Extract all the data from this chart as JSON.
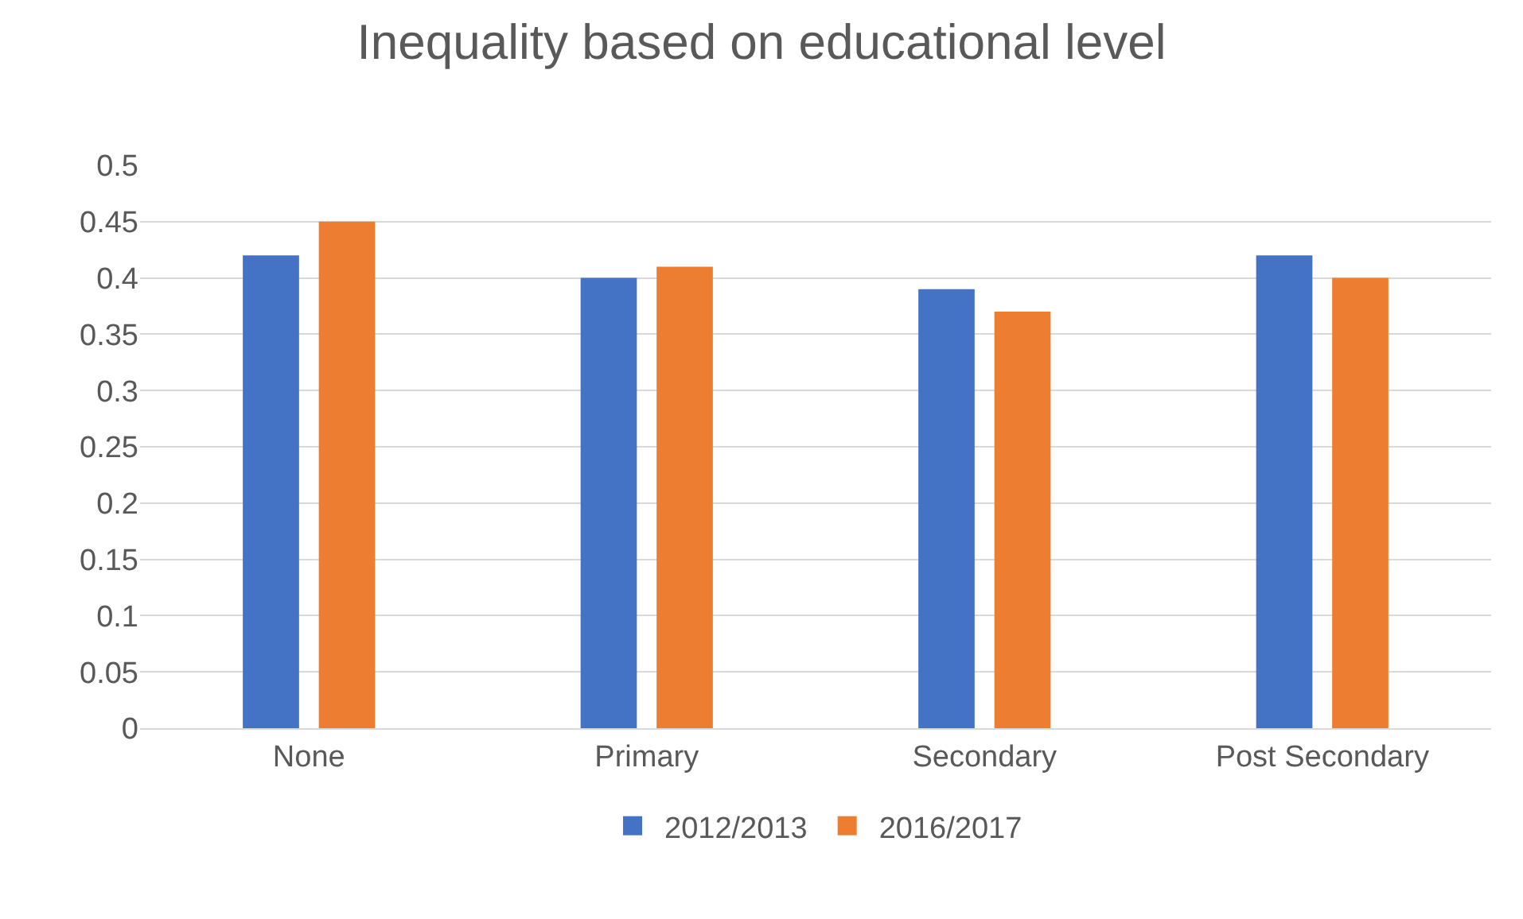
{
  "chart_data": {
    "type": "bar",
    "title": "Inequality based on educational level",
    "categories": [
      "None",
      "Primary",
      "Secondary",
      "Post Secondary"
    ],
    "series": [
      {
        "name": "2012/2013",
        "color": "#4472c4",
        "values": [
          0.42,
          0.4,
          0.39,
          0.42
        ]
      },
      {
        "name": "2016/2017",
        "color": "#ed7d31",
        "values": [
          0.45,
          0.41,
          0.37,
          0.4
        ]
      }
    ],
    "ylim": [
      0,
      0.5
    ],
    "yticks": [
      0,
      0.05,
      0.1,
      0.15,
      0.2,
      0.25,
      0.3,
      0.35,
      0.4,
      0.45,
      0.5
    ],
    "grid": "y",
    "legend": "bottom"
  }
}
